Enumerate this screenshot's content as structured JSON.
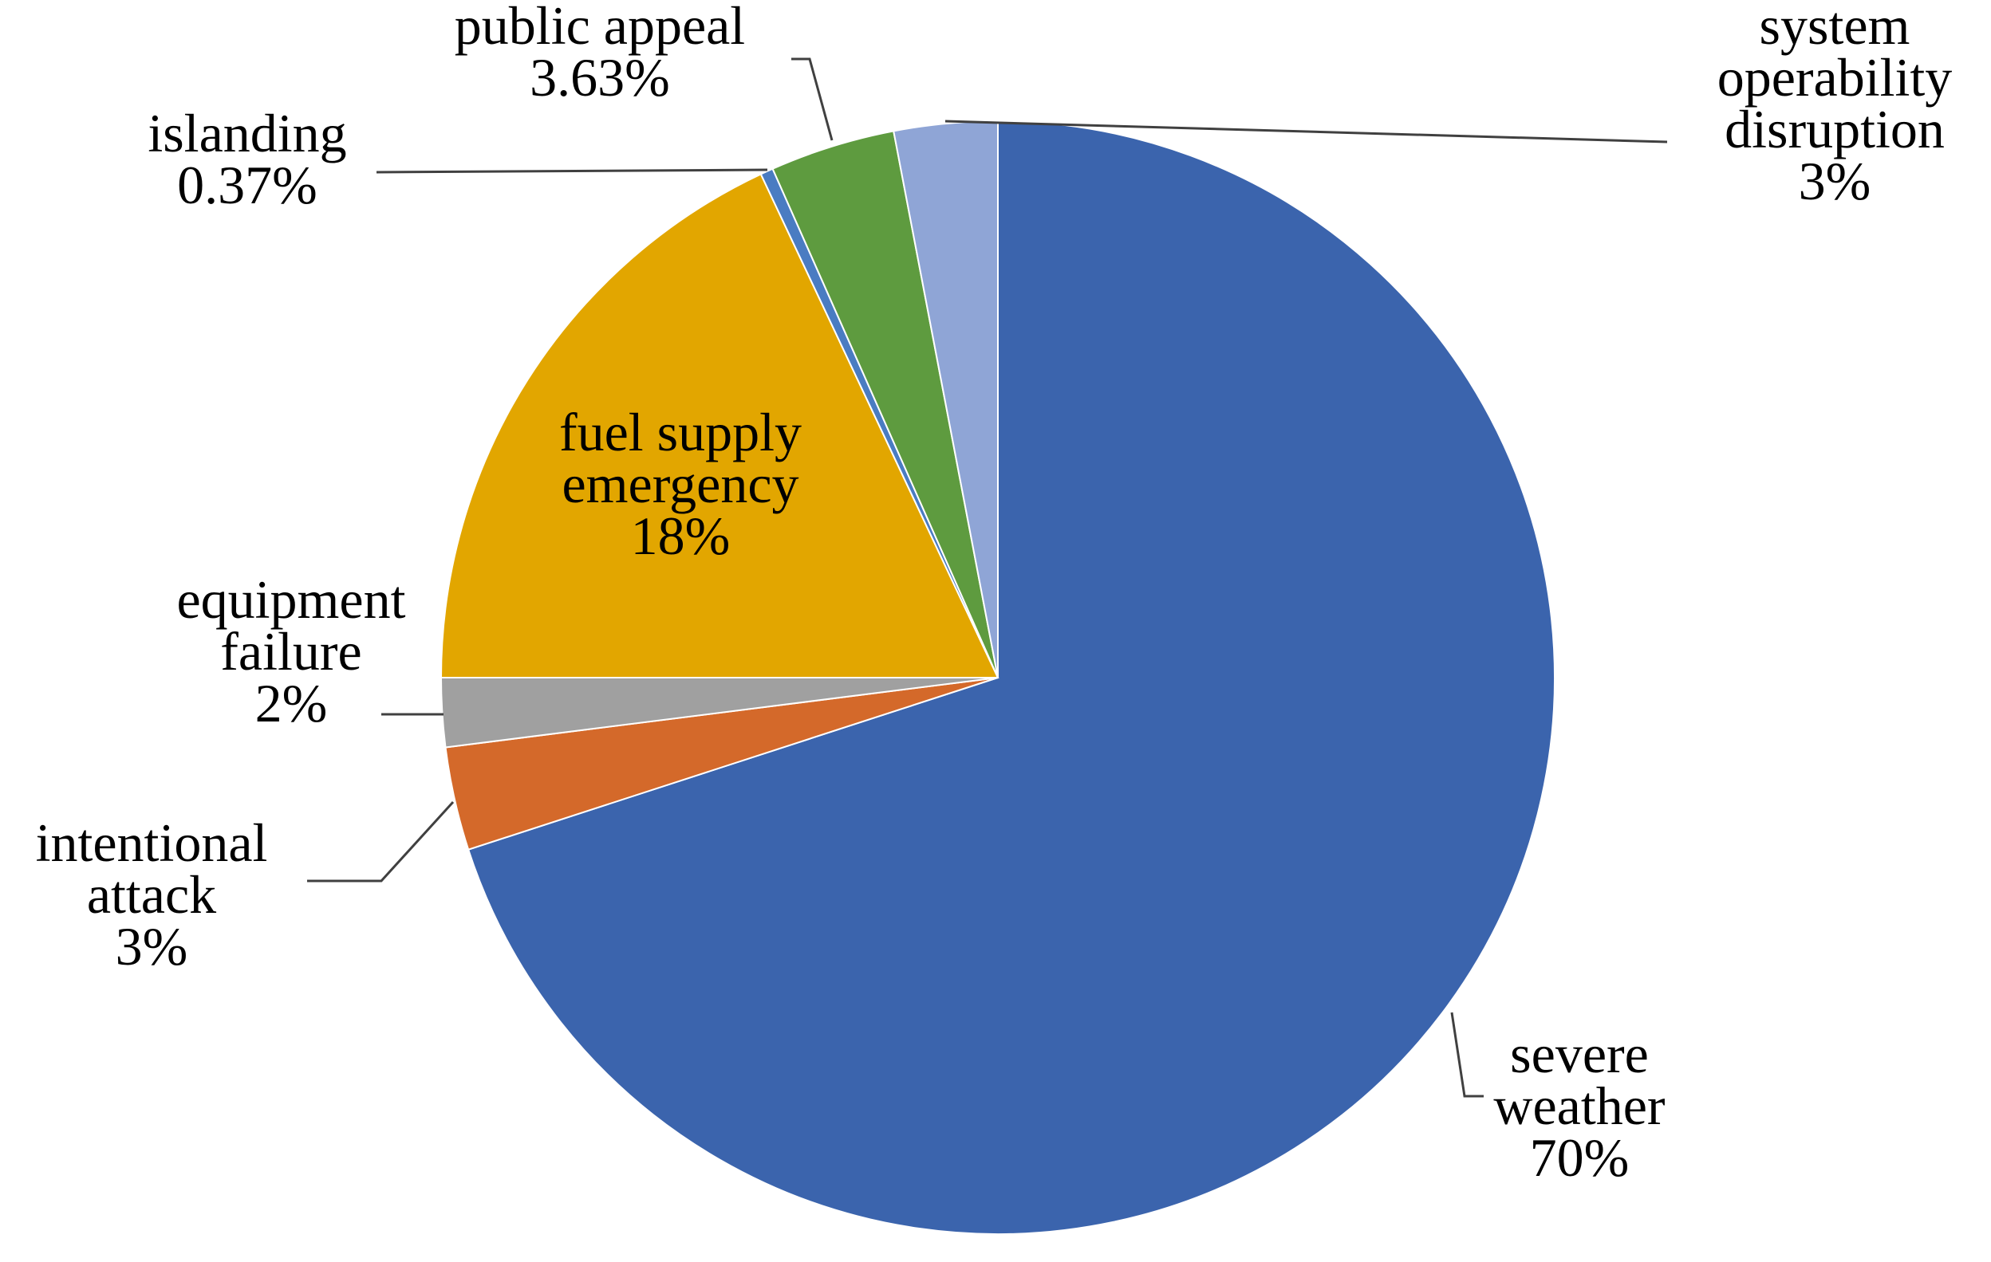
{
  "chart_data": {
    "type": "pie",
    "title": "",
    "start_angle_deg": 0,
    "direction": "clockwise",
    "slices": [
      {
        "name": "severe weather",
        "label_lines": [
          "severe",
          "weather"
        ],
        "value": 70,
        "value_label": "70%",
        "color": "#3B64AD",
        "label_position": "outside"
      },
      {
        "name": "intentional attack",
        "label_lines": [
          "intentional",
          "attack"
        ],
        "value": 3,
        "value_label": "3%",
        "color": "#D4692A",
        "label_position": "outside"
      },
      {
        "name": "equipment failure",
        "label_lines": [
          "equipment",
          "failure"
        ],
        "value": 2,
        "value_label": "2%",
        "color": "#A0A0A0",
        "label_position": "outside"
      },
      {
        "name": "fuel supply emergency",
        "label_lines": [
          "fuel supply",
          "emergency"
        ],
        "value": 18,
        "value_label": "18%",
        "color": "#E2A600",
        "label_position": "inside"
      },
      {
        "name": "islanding",
        "label_lines": [
          "islanding"
        ],
        "value": 0.37,
        "value_label": "0.37%",
        "color": "#4A7CC2",
        "label_position": "outside"
      },
      {
        "name": "public appeal",
        "label_lines": [
          "public appeal"
        ],
        "value": 3.63,
        "value_label": "3.63%",
        "color": "#5E9B3F",
        "label_position": "outside"
      },
      {
        "name": "system operability disruption",
        "label_lines": [
          "system",
          "operability",
          "disruption"
        ],
        "value": 3,
        "value_label": "3%",
        "color": "#8FA5D6",
        "label_position": "outside"
      }
    ]
  }
}
